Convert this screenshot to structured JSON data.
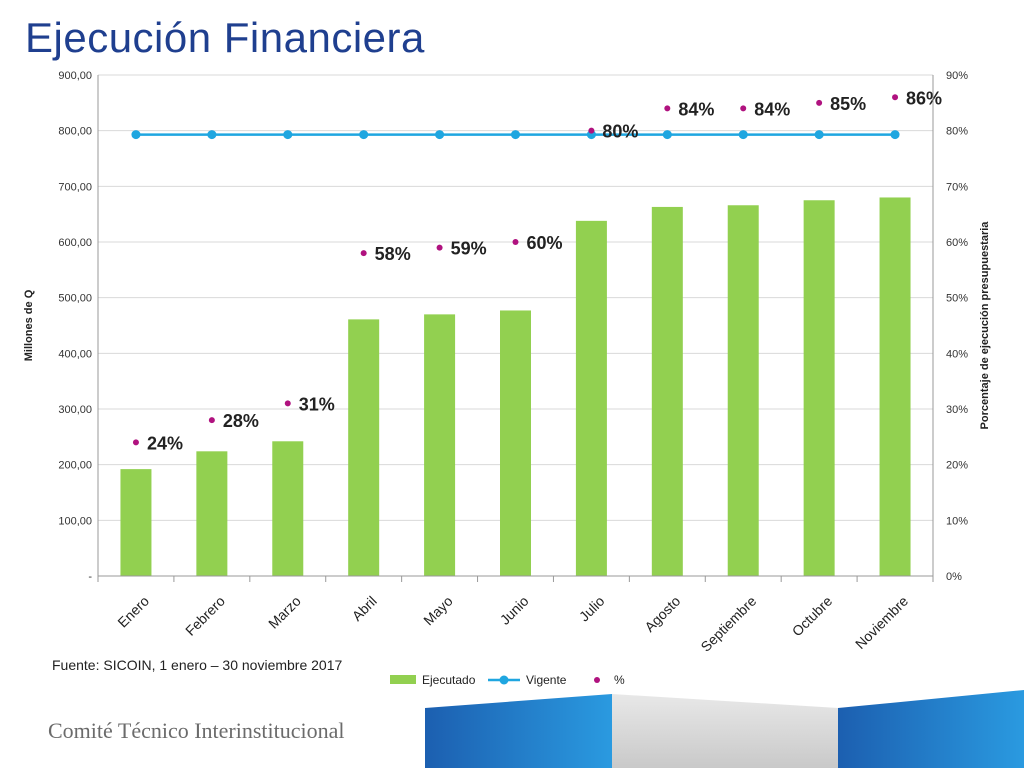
{
  "title": "Ejecución Financiera",
  "source_note": "Fuente: SICOIN, 1 enero – 30 noviembre 2017",
  "footer": "Comité Técnico Interinstitucional",
  "colors": {
    "title": "#1f3f8f",
    "ejecutado": "#92d050",
    "vigente": "#1fa6e0",
    "percent": "#b0127f",
    "grid": "#d9d9d9"
  },
  "chart_data": {
    "type": "bar",
    "categories": [
      "Enero",
      "Febrero",
      "Marzo",
      "Abril",
      "Mayo",
      "Junio",
      "Julio",
      "Agosto",
      "Septiembre",
      "Octubre",
      "Noviembre"
    ],
    "series": [
      {
        "name": "Ejecutado",
        "type": "bar",
        "axis": "left",
        "values": [
          192,
          224,
          242,
          461,
          470,
          477,
          638,
          663,
          666,
          675,
          680
        ]
      },
      {
        "name": "Vigente",
        "type": "line",
        "axis": "left",
        "values": [
          793,
          793,
          793,
          793,
          793,
          793,
          793,
          793,
          793,
          793,
          793
        ]
      },
      {
        "name": "%",
        "type": "scatter",
        "axis": "right",
        "values": [
          24,
          28,
          31,
          58,
          59,
          60,
          80,
          84,
          84,
          85,
          86
        ]
      }
    ],
    "percent_labels": [
      "24%",
      "28%",
      "31%",
      "58%",
      "59%",
      "60%",
      "80%",
      "84%",
      "84%",
      "85%",
      "86%"
    ],
    "ylabel": "Millones de Q",
    "y2label": "Porcentaje de ejecución presupuestaria",
    "ylim": [
      0,
      900
    ],
    "y2lim": [
      0,
      90
    ],
    "yticks": [
      "-",
      "100,00",
      "200,00",
      "300,00",
      "400,00",
      "500,00",
      "600,00",
      "700,00",
      "800,00",
      "900,00"
    ],
    "y2ticks": [
      "0%",
      "10%",
      "20%",
      "30%",
      "40%",
      "50%",
      "60%",
      "70%",
      "80%",
      "90%"
    ],
    "grid": true,
    "legend_position": "bottom"
  }
}
